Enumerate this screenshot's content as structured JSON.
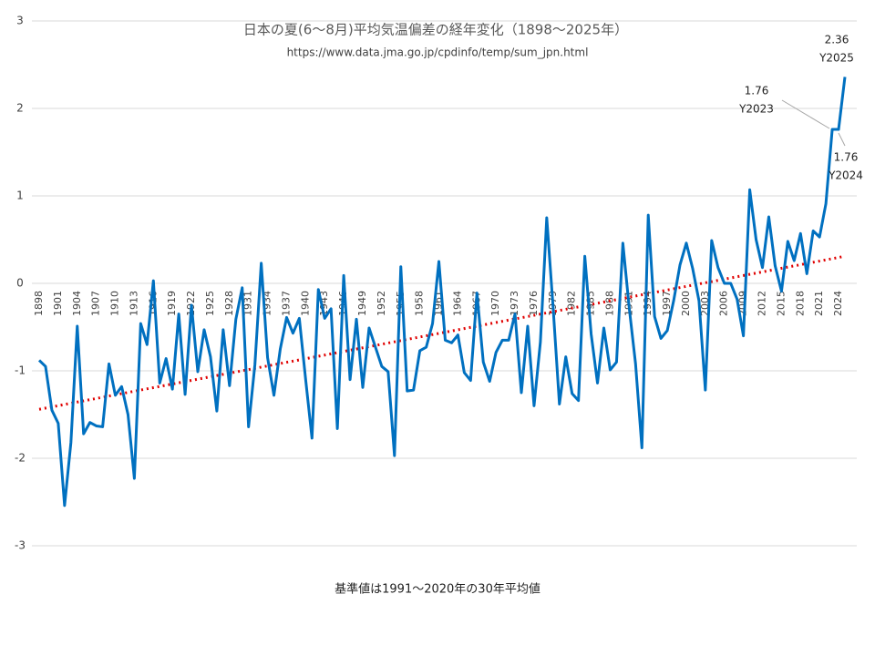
{
  "chart_data": {
    "type": "line",
    "title": "日本の夏(6～8月)平均気温偏差の経年変化（1898～2025年）",
    "subtitle": "https://www.data.jma.go.jp/cpdinfo/temp/sum_jpn.html",
    "footnote": "基準値は1991～2020年の30年平均値",
    "x": [
      1898,
      1899,
      1900,
      1901,
      1902,
      1903,
      1904,
      1905,
      1906,
      1907,
      1908,
      1909,
      1910,
      1911,
      1912,
      1913,
      1914,
      1915,
      1916,
      1917,
      1918,
      1919,
      1920,
      1921,
      1922,
      1923,
      1924,
      1925,
      1926,
      1927,
      1928,
      1929,
      1930,
      1931,
      1932,
      1933,
      1934,
      1935,
      1936,
      1937,
      1938,
      1939,
      1940,
      1941,
      1942,
      1943,
      1944,
      1945,
      1946,
      1947,
      1948,
      1949,
      1950,
      1951,
      1952,
      1953,
      1954,
      1955,
      1956,
      1957,
      1958,
      1959,
      1960,
      1961,
      1962,
      1963,
      1964,
      1965,
      1966,
      1967,
      1968,
      1969,
      1970,
      1971,
      1972,
      1973,
      1974,
      1975,
      1976,
      1977,
      1978,
      1979,
      1980,
      1981,
      1982,
      1983,
      1984,
      1985,
      1986,
      1987,
      1988,
      1989,
      1990,
      1991,
      1992,
      1993,
      1994,
      1995,
      1996,
      1997,
      1998,
      1999,
      2000,
      2001,
      2002,
      2003,
      2004,
      2005,
      2006,
      2007,
      2008,
      2009,
      2010,
      2011,
      2012,
      2013,
      2014,
      2015,
      2016,
      2017,
      2018,
      2019,
      2020,
      2021,
      2022,
      2023,
      2024,
      2025
    ],
    "series": [
      {
        "color": "#0070c0",
        "values": [
          -0.88,
          -0.95,
          -1.45,
          -1.6,
          -2.54,
          -1.82,
          -0.49,
          -1.72,
          -1.59,
          -1.63,
          -1.64,
          -0.92,
          -1.28,
          -1.18,
          -1.5,
          -2.23,
          -0.46,
          -0.7,
          0.03,
          -1.14,
          -0.86,
          -1.21,
          -0.35,
          -1.27,
          -0.25,
          -1.01,
          -0.53,
          -0.84,
          -1.46,
          -0.53,
          -1.17,
          -0.41,
          -0.05,
          -1.64,
          -0.93,
          0.23,
          -0.85,
          -1.28,
          -0.75,
          -0.39,
          -0.57,
          -0.4,
          -1.1,
          -1.77,
          -0.07,
          -0.4,
          -0.29,
          -1.66,
          0.09,
          -1.1,
          -0.41,
          -1.19,
          -0.51,
          -0.73,
          -0.95,
          -1.01,
          -1.97,
          0.19,
          -1.23,
          -1.22,
          -0.77,
          -0.73,
          -0.46,
          0.25,
          -0.65,
          -0.68,
          -0.59,
          -1.02,
          -1.11,
          -0.11,
          -0.9,
          -1.12,
          -0.79,
          -0.65,
          -0.65,
          -0.35,
          -1.25,
          -0.49,
          -1.4,
          -0.67,
          0.75,
          -0.27,
          -1.38,
          -0.84,
          -1.26,
          -1.34,
          0.31,
          -0.58,
          -1.14,
          -0.51,
          -0.99,
          -0.9,
          0.46,
          -0.28,
          -0.92,
          -1.88,
          0.78,
          -0.38,
          -0.63,
          -0.54,
          -0.2,
          0.21,
          0.46,
          0.17,
          -0.2,
          -1.22,
          0.49,
          0.18,
          0,
          0,
          -0.18,
          -0.6,
          1.07,
          0.5,
          0.18,
          0.76,
          0.2,
          -0.09,
          0.48,
          0.26,
          0.57,
          0.11,
          0.6,
          0.53,
          0.91,
          1.76,
          1.76,
          2.36
        ]
      }
    ],
    "trend": {
      "color": "#e00000",
      "values": [
        -1.44,
        0.31
      ]
    },
    "annotations": [
      [
        "2.36",
        "Y2025"
      ],
      [
        "1.76",
        "Y2023"
      ],
      [
        "1.76",
        "Y2024"
      ]
    ],
    "xlim": [
      1898,
      2025
    ],
    "xticks": [
      1898,
      1901,
      1904,
      1907,
      1910,
      1913,
      1916,
      1919,
      1922,
      1925,
      1928,
      1931,
      1934,
      1937,
      1940,
      1943,
      1946,
      1949,
      1952,
      1955,
      1958,
      1961,
      1964,
      1967,
      1970,
      1973,
      1976,
      1979,
      1982,
      1985,
      1988,
      1991,
      1994,
      1997,
      2000,
      2003,
      2006,
      2009,
      2012,
      2015,
      2018,
      2021,
      2024
    ],
    "ylim": [
      -3,
      3
    ],
    "yticks": [
      -3,
      -2,
      -1,
      0,
      1,
      2,
      3
    ],
    "grid": true
  }
}
